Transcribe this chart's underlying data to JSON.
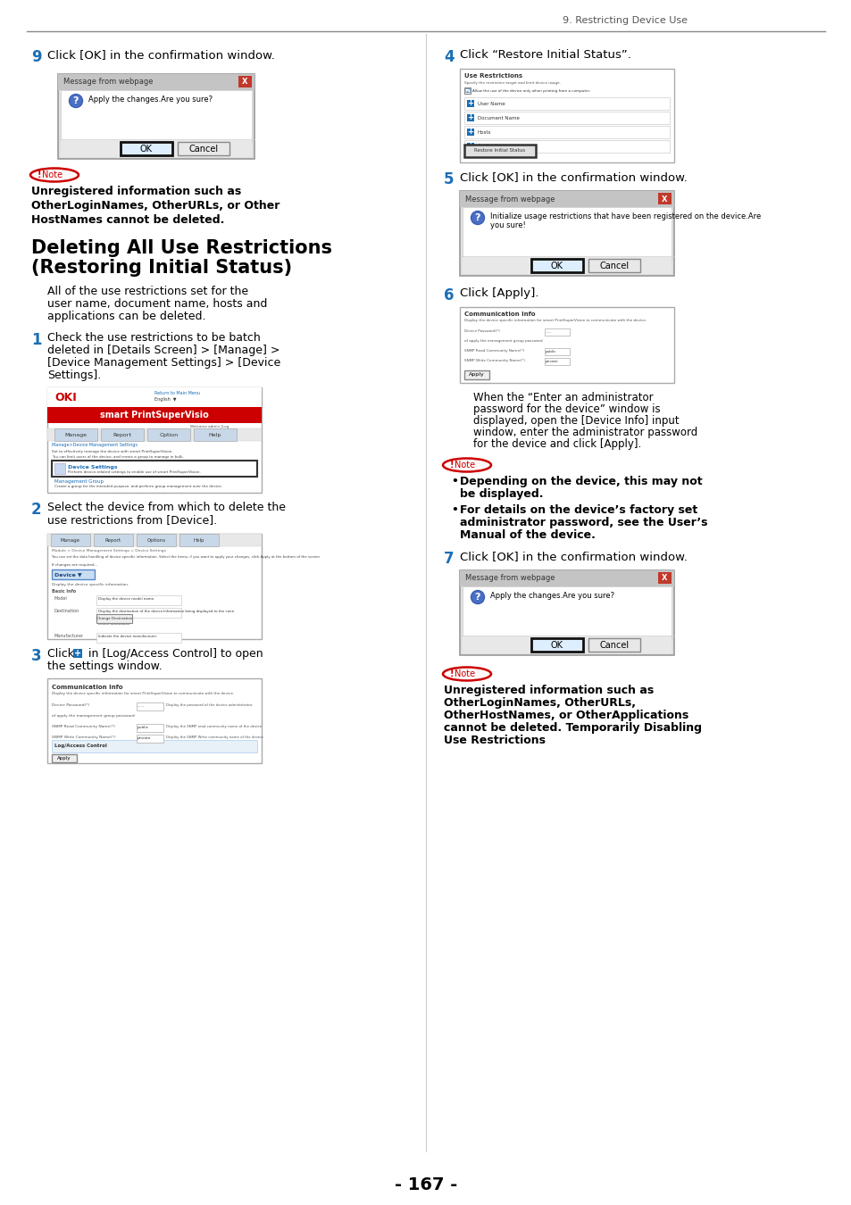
{
  "page_header": "9. Restricting Device Use",
  "page_number": "- 167 -",
  "background_color": "#ffffff",
  "label_color": "#1a6eb5",
  "note_border_color": "#cc0000",
  "left_column": {
    "step9_text": "Click [OK] in the confirmation window.",
    "note1_line1": "Unregistered information such as",
    "note1_line2": "OtherLoginNames, OtherURLs, or Other",
    "note1_line3": "HostNames cannot be deleted.",
    "section_title_line1": "Deleting All Use Restrictions",
    "section_title_line2": "(Restoring Initial Status)",
    "section_intro_line1": "All of the use restrictions set for the",
    "section_intro_line2": "user name, document name, hosts and",
    "section_intro_line3": "applications can be deleted.",
    "step1_line1": "Check the use restrictions to be batch",
    "step1_line2": "deleted in [Details Screen] > [Manage] >",
    "step1_line3": "[Device Management Settings] > [Device",
    "step1_line4": "Settings].",
    "step2_line1": "Select the device from which to delete the",
    "step2_line2": "use restrictions from [Device].",
    "step3_line1": "Click",
    "step3_line2": "in [Log/Access Control] to open",
    "step3_line3": "the settings window."
  },
  "right_column": {
    "step4_text": "Click “Restore Initial Status”.",
    "step5_text": "Click [OK] in the confirmation window.",
    "step6_text": "Click [Apply].",
    "step6_note_line1": "When the “Enter an administrator",
    "step6_note_line2": "password for the device” window is",
    "step6_note_line3": "displayed, open the [Device Info] input",
    "step6_note_line4": "window, enter the administrator password",
    "step6_note_line5": "for the device and click [Apply].",
    "bullet1_line1": "Depending on the device, this may not",
    "bullet1_line2": "be displayed.",
    "bullet2_line1": "For details on the device’s factory set",
    "bullet2_line2": "administrator password, see the User’s",
    "bullet2_line3": "Manual of the device.",
    "step7_text": "Click [OK] in the confirmation window.",
    "note3_line1": "Unregistered information such as",
    "note3_line2": "OtherLoginNames, OtherURLs,",
    "note3_line3": "OtherHostNames, or OtherApplications",
    "note3_line4": "cannot be deleted. Temporarily Disabling",
    "note3_line5": "Use Restrictions"
  }
}
